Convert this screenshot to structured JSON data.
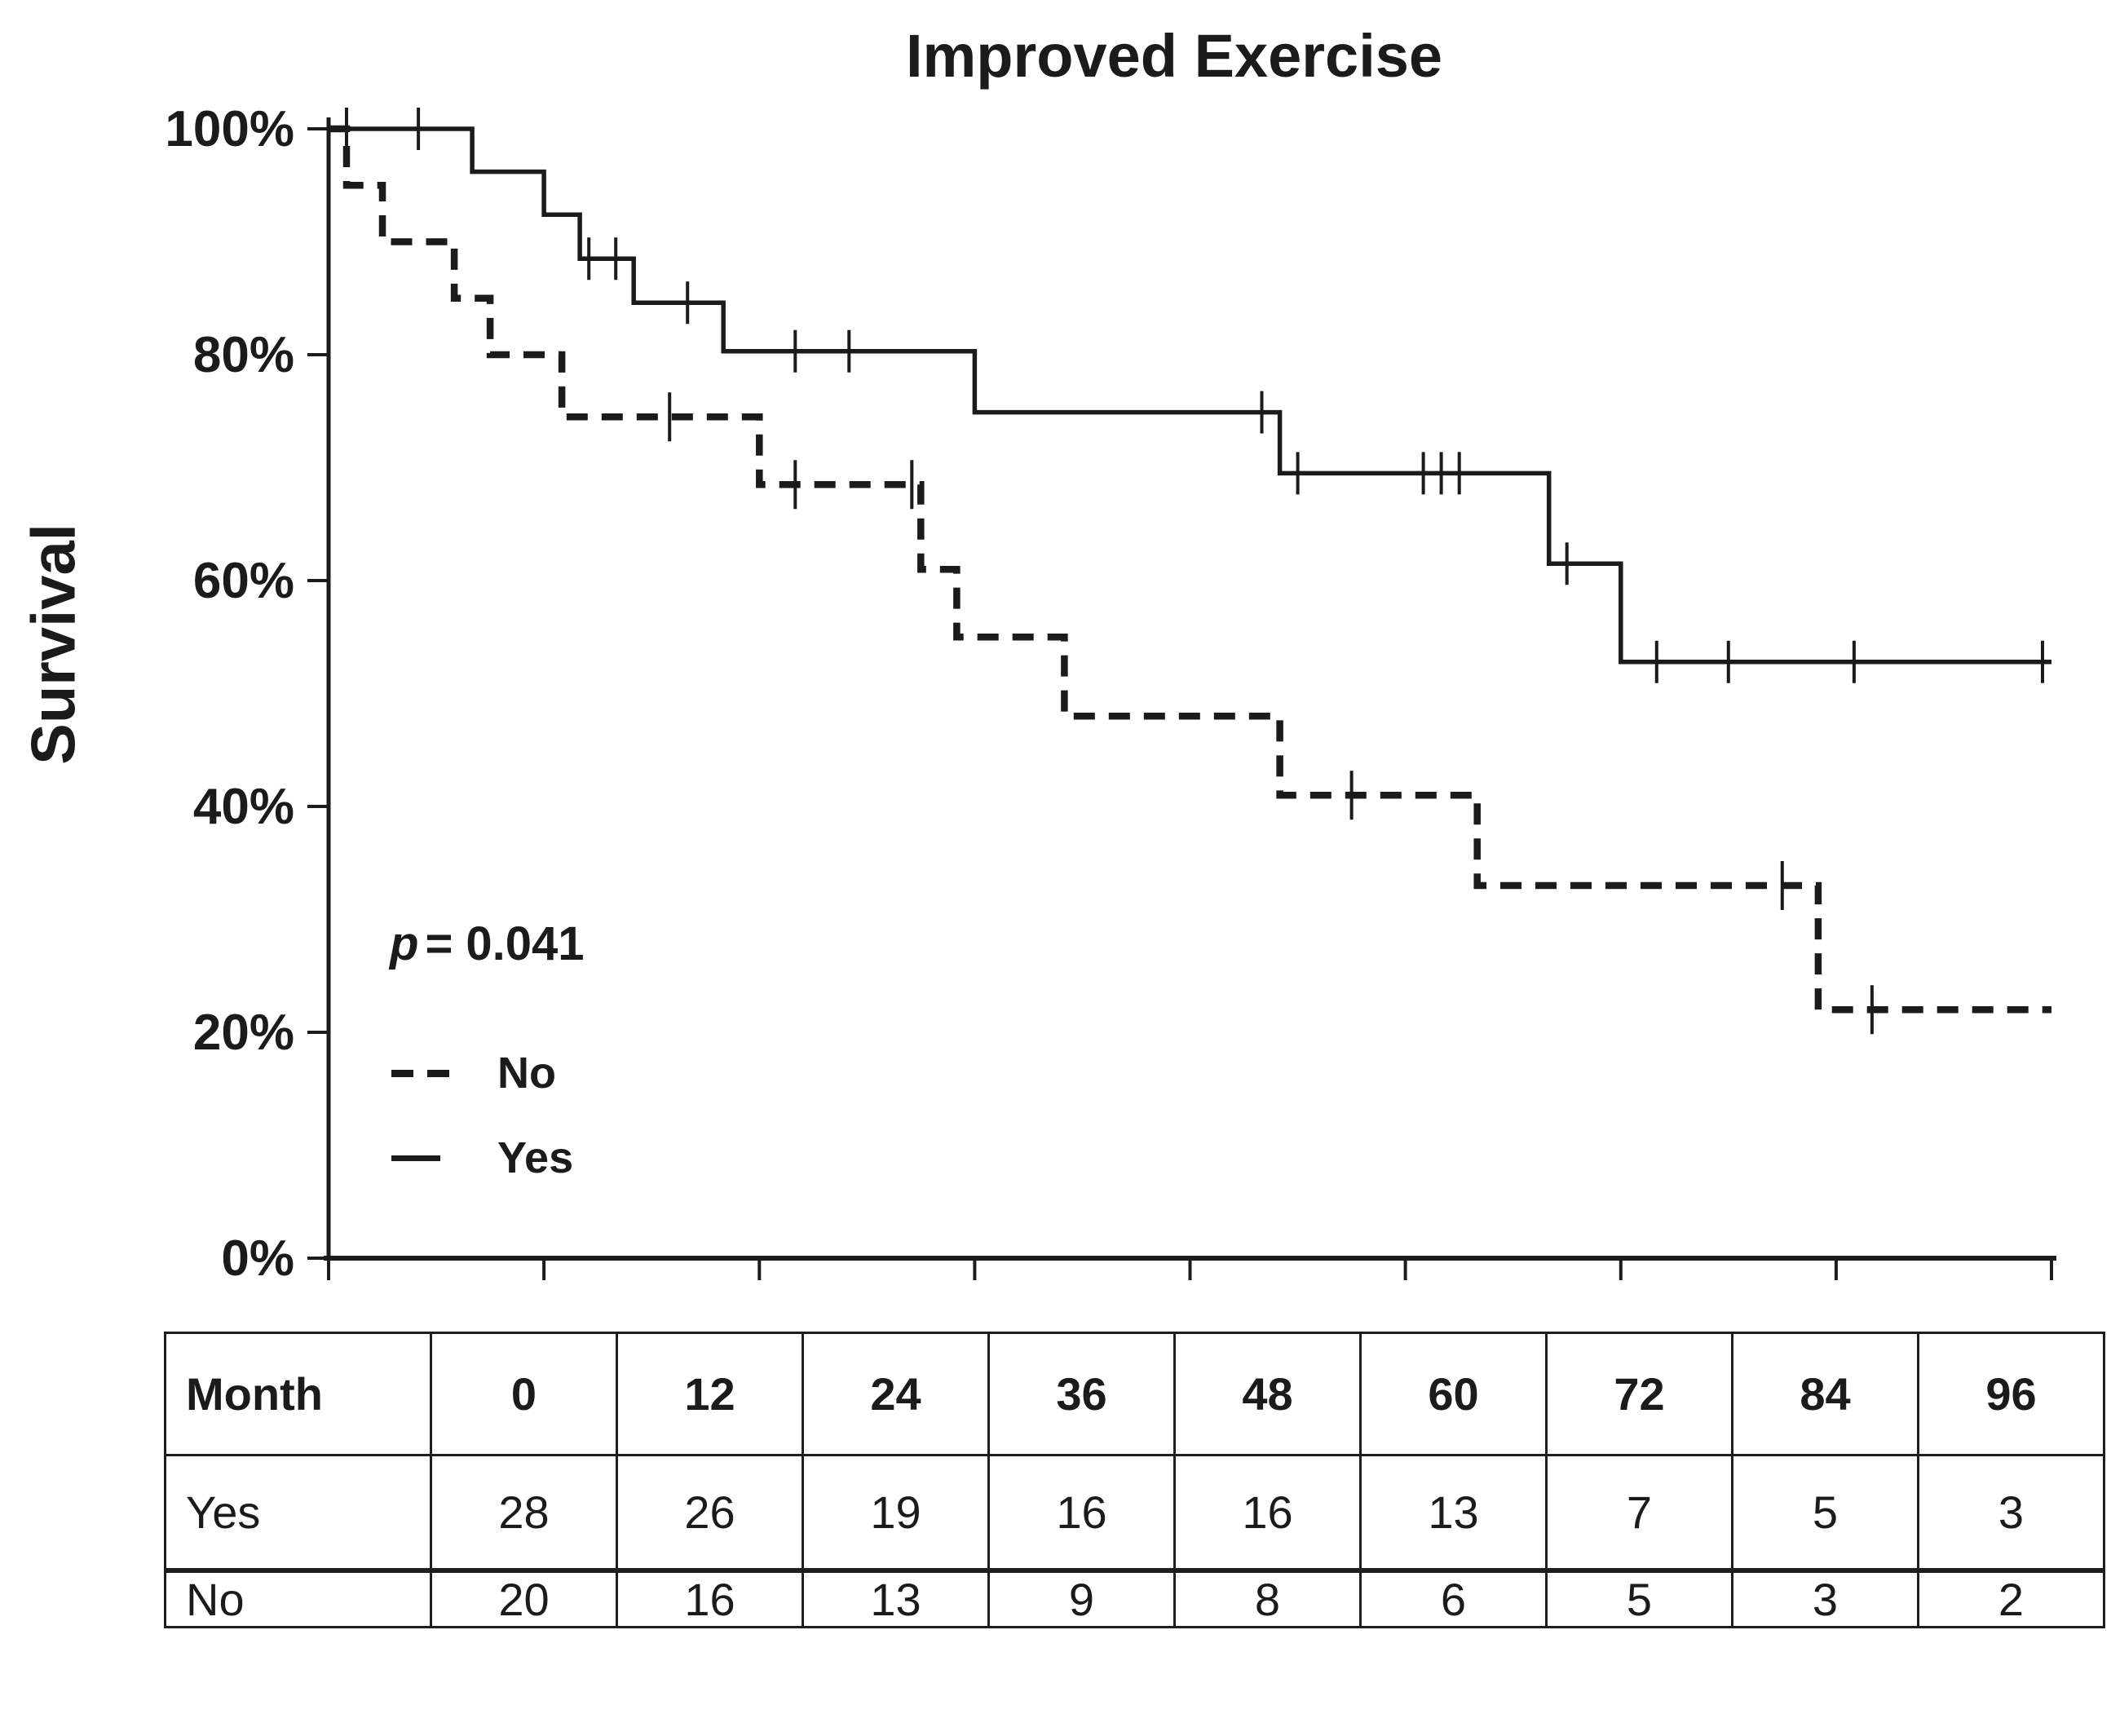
{
  "title": "Improved Exercise",
  "y_axis_label": "Survival",
  "annotation": {
    "p_symbol": "p",
    "p_rest": "= 0.041"
  },
  "legend": {
    "no_label": "No",
    "yes_label": "Yes"
  },
  "colors": {
    "ink": "#1b1b1b"
  },
  "chart_data": {
    "type": "line",
    "subtype": "kaplan-meier-step",
    "title": "Improved Exercise",
    "xlabel": "Month",
    "ylabel": "Survival",
    "xlim": [
      0,
      96
    ],
    "ylim": [
      0,
      100
    ],
    "x_ticks": [
      0,
      12,
      24,
      36,
      48,
      60,
      72,
      84,
      96
    ],
    "y_tick_values": [
      100,
      80,
      60,
      40,
      20,
      0
    ],
    "y_tick_labels": [
      "100%",
      "80%",
      "60%",
      "40%",
      "20%",
      "0%"
    ],
    "grid": false,
    "legend_position": "lower left",
    "p_value": 0.041,
    "series": [
      {
        "name": "Yes",
        "line_style": "solid",
        "color": "#1b1b1b",
        "steps": [
          [
            0,
            100
          ],
          [
            8,
            96.2
          ],
          [
            12,
            92.4
          ],
          [
            14,
            88.5
          ],
          [
            17,
            84.6
          ],
          [
            22,
            80.3
          ],
          [
            36,
            74.9
          ],
          [
            53,
            69.5
          ],
          [
            68,
            61.5
          ],
          [
            72,
            52.8
          ]
        ],
        "end_x": 96,
        "censor_marks": [
          [
            1,
            100
          ],
          [
            5,
            100
          ],
          [
            14.5,
            88.5
          ],
          [
            16,
            88.5
          ],
          [
            20,
            84.6
          ],
          [
            26,
            80.3
          ],
          [
            29,
            80.3
          ],
          [
            52,
            74.9
          ],
          [
            54,
            69.5
          ],
          [
            61,
            69.5
          ],
          [
            62,
            69.5
          ],
          [
            63,
            69.5
          ],
          [
            69,
            61.5
          ],
          [
            74,
            52.8
          ],
          [
            78,
            52.8
          ],
          [
            85,
            52.8
          ],
          [
            95.5,
            52.8
          ]
        ]
      },
      {
        "name": "No",
        "line_style": "dashed",
        "color": "#1b1b1b",
        "steps": [
          [
            0,
            100
          ],
          [
            1,
            95
          ],
          [
            3,
            90
          ],
          [
            7,
            85
          ],
          [
            9,
            80
          ],
          [
            13,
            74.5
          ],
          [
            24,
            68.5
          ],
          [
            33,
            61
          ],
          [
            35,
            55
          ],
          [
            41,
            48
          ],
          [
            53,
            41
          ],
          [
            64,
            33
          ],
          [
            83,
            22
          ]
        ],
        "end_x": 96,
        "censor_marks": [
          [
            19,
            74.5
          ],
          [
            26,
            68.5
          ],
          [
            32.5,
            68.5
          ],
          [
            57,
            41
          ],
          [
            81,
            33
          ],
          [
            86,
            22
          ]
        ]
      }
    ],
    "risk_table": {
      "header": [
        "Month",
        "0",
        "12",
        "24",
        "36",
        "48",
        "60",
        "72",
        "84",
        "96"
      ],
      "rows": [
        {
          "label": "Yes",
          "values": [
            "28",
            "26",
            "19",
            "16",
            "16",
            "13",
            "7",
            "5",
            "3"
          ]
        },
        {
          "label": "No",
          "values": [
            "20",
            "16",
            "13",
            "9",
            "8",
            "6",
            "5",
            "3",
            "2"
          ]
        }
      ]
    }
  }
}
